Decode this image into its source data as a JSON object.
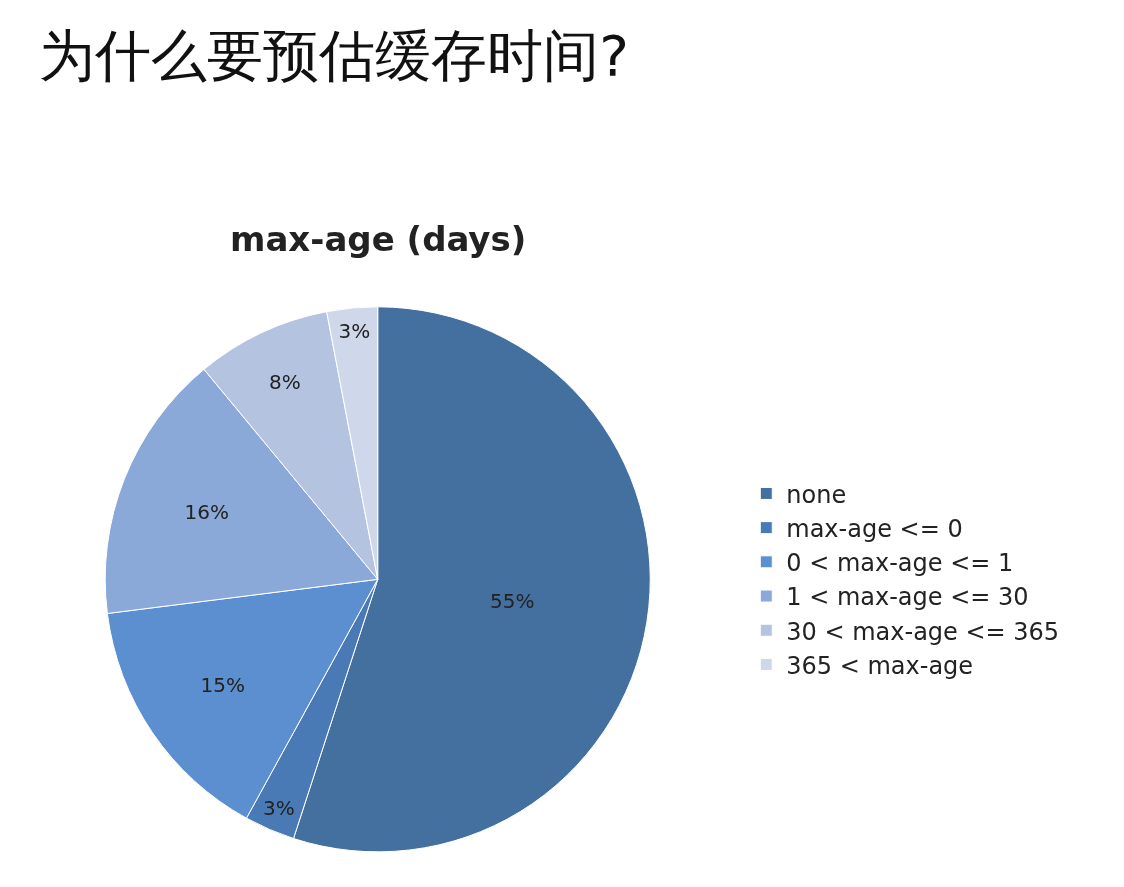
{
  "chart_data": {
    "type": "pie",
    "title": "为什么要预估缓存时间?",
    "subtitle": "max-age (days)",
    "categories": [
      "none",
      "max-age <= 0",
      "0 < max-age <= 1",
      "1 < max-age <= 30",
      "30 < max-age <= 365",
      "365 < max-age"
    ],
    "values": [
      55,
      3,
      15,
      16,
      8,
      3
    ],
    "value_labels": [
      "55%",
      "3%",
      "15%",
      "16%",
      "8%",
      "3%"
    ],
    "colors": [
      "#44709f",
      "#4a7ab5",
      "#5b8fcf",
      "#8aa9d8",
      "#b3c3e0",
      "#cfd8ea"
    ],
    "legend": "right"
  }
}
